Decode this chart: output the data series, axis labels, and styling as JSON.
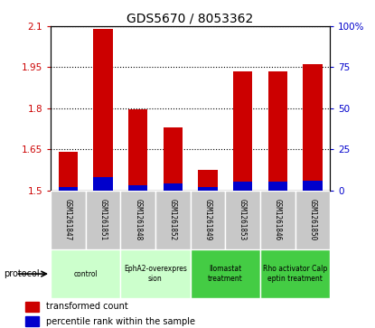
{
  "title": "GDS5670 / 8053362",
  "samples": [
    "GSM1261847",
    "GSM1261851",
    "GSM1261848",
    "GSM1261852",
    "GSM1261849",
    "GSM1261853",
    "GSM1261846",
    "GSM1261850"
  ],
  "transformed_counts": [
    1.64,
    2.09,
    1.795,
    1.73,
    1.575,
    1.935,
    1.935,
    1.96
  ],
  "percentile_ranks": [
    2,
    8,
    3,
    4,
    2,
    5,
    5,
    6
  ],
  "ymin": 1.5,
  "ymax": 2.1,
  "yticks": [
    1.5,
    1.65,
    1.8,
    1.95,
    2.1
  ],
  "ytick_labels": [
    "1.5",
    "1.65",
    "1.8",
    "1.95",
    "2.1"
  ],
  "right_yticks": [
    0,
    25,
    50,
    75,
    100
  ],
  "right_ytick_labels": [
    "0",
    "25",
    "50",
    "75",
    "100%"
  ],
  "bar_color": "#cc0000",
  "percentile_color": "#0000cc",
  "left_tick_color": "#cc0000",
  "right_tick_color": "#0000cc",
  "protocols": [
    {
      "label": "control",
      "samples": [
        0,
        1
      ],
      "color": "#ccffcc"
    },
    {
      "label": "EphA2-overexpres\nsion",
      "samples": [
        2,
        3
      ],
      "color": "#ccffcc"
    },
    {
      "label": "Ilomastat\ntreatment",
      "samples": [
        4,
        5
      ],
      "color": "#44cc44"
    },
    {
      "label": "Rho activator Calp\neptin treatment",
      "samples": [
        6,
        7
      ],
      "color": "#44cc44"
    }
  ],
  "sample_box_color": "#c8c8c8",
  "plot_bg": "#ffffff",
  "bar_width": 0.55,
  "title_fontsize": 10
}
